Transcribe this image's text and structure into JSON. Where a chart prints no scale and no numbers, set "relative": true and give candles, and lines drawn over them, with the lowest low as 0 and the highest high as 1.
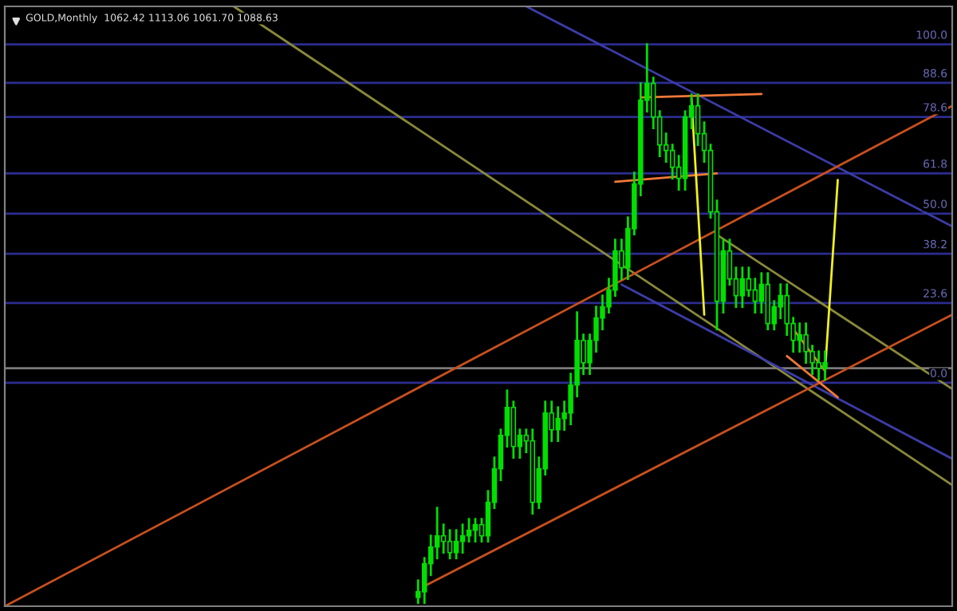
{
  "chart_data": {
    "type": "candlestick",
    "title": "GOLD,Monthly  1062.42 1113.06 1061.70 1088.63",
    "relative": true,
    "color": "#00e000",
    "categories": [
      null,
      null,
      null,
      null,
      null,
      null,
      null,
      null,
      null,
      null,
      null,
      null,
      null,
      null,
      null,
      null,
      null,
      null,
      null,
      null,
      null,
      null,
      null,
      null,
      null,
      null,
      null,
      null,
      null,
      null,
      null,
      null,
      null,
      null,
      null,
      null,
      null,
      null,
      null,
      null,
      null,
      null,
      null,
      null,
      null,
      null,
      null,
      null,
      null,
      null,
      null,
      null,
      null,
      null,
      null,
      null,
      null,
      null,
      null,
      null,
      null,
      null,
      null,
      null,
      null,
      null,
      null,
      null,
      null,
      null,
      null,
      null,
      null,
      null,
      null,
      null,
      null,
      null,
      null,
      null,
      null,
      null,
      null,
      null,
      null,
      null,
      null,
      null,
      null,
      null,
      null,
      null,
      null,
      null,
      null,
      null,
      null,
      null,
      null,
      null,
      null,
      null,
      null,
      null,
      null,
      null,
      null,
      null,
      null,
      null,
      null,
      null,
      null,
      null,
      null,
      null,
      null,
      null,
      null,
      null,
      null,
      null,
      null,
      null,
      null,
      null,
      null,
      null,
      null,
      null,
      null,
      null,
      null,
      null,
      null,
      null,
      null,
      null,
      null,
      null,
      null,
      null,
      null,
      null,
      null,
      null,
      null,
      null,
      null,
      null
    ],
    "ohlc": [
      null,
      null,
      null,
      null,
      null,
      null,
      null,
      null,
      null,
      null,
      null,
      null,
      null,
      null,
      null,
      null,
      null,
      null,
      null,
      null,
      null,
      null,
      null,
      null,
      null,
      null,
      null,
      null,
      null,
      null,
      null,
      null,
      null,
      null,
      null,
      null,
      null,
      null,
      null,
      null,
      null,
      null,
      null,
      null,
      null,
      null,
      null,
      null,
      null,
      null,
      null,
      null,
      null,
      null,
      null,
      null,
      null,
      null,
      null,
      null,
      null,
      null,
      null,
      null,
      null,
      [
        0.01,
        0.04,
        0.0,
        0.02
      ],
      [
        0.02,
        0.08,
        0.0,
        0.07
      ],
      [
        0.07,
        0.12,
        0.05,
        0.1
      ],
      [
        0.1,
        0.17,
        0.08,
        0.12
      ],
      [
        0.12,
        0.14,
        0.09,
        0.11
      ],
      [
        0.11,
        0.13,
        0.08,
        0.09
      ],
      [
        0.09,
        0.13,
        0.08,
        0.11
      ],
      [
        0.11,
        0.14,
        0.09,
        0.12
      ],
      [
        0.12,
        0.15,
        0.11,
        0.13
      ],
      [
        0.13,
        0.15,
        0.11,
        0.14
      ],
      [
        0.14,
        0.15,
        0.11,
        0.12
      ],
      [
        0.12,
        0.2,
        0.11,
        0.18
      ],
      [
        0.18,
        0.26,
        0.17,
        0.24
      ],
      [
        0.24,
        0.31,
        0.22,
        0.3
      ],
      [
        0.3,
        0.38,
        0.28,
        0.35
      ],
      [
        0.35,
        0.36,
        0.26,
        0.28
      ],
      [
        0.28,
        0.31,
        0.26,
        0.3
      ],
      [
        0.3,
        0.31,
        0.27,
        0.29
      ],
      [
        0.29,
        0.31,
        0.16,
        0.18
      ],
      [
        0.18,
        0.26,
        0.17,
        0.24
      ],
      [
        0.24,
        0.36,
        0.23,
        0.34
      ],
      [
        0.34,
        0.36,
        0.29,
        0.31
      ],
      [
        0.31,
        0.35,
        0.29,
        0.33
      ],
      [
        0.33,
        0.36,
        0.31,
        0.34
      ],
      [
        0.34,
        0.41,
        0.32,
        0.39
      ],
      [
        0.39,
        0.52,
        0.37,
        0.47
      ],
      [
        0.47,
        0.48,
        0.41,
        0.43
      ],
      [
        0.43,
        0.48,
        0.41,
        0.47
      ],
      [
        0.47,
        0.53,
        0.45,
        0.51
      ],
      [
        0.51,
        0.55,
        0.49,
        0.53
      ],
      [
        0.53,
        0.58,
        0.52,
        0.56
      ],
      [
        0.56,
        0.65,
        0.55,
        0.63
      ],
      [
        0.63,
        0.65,
        0.58,
        0.6
      ],
      [
        0.6,
        0.69,
        0.58,
        0.67
      ],
      [
        0.67,
        0.77,
        0.66,
        0.75
      ],
      [
        0.75,
        0.93,
        0.73,
        0.9
      ],
      [
        0.9,
        1.0,
        0.88,
        0.93
      ],
      [
        0.93,
        0.94,
        0.85,
        0.87
      ],
      [
        0.87,
        0.88,
        0.8,
        0.82
      ],
      [
        0.82,
        0.84,
        0.79,
        0.81
      ],
      [
        0.81,
        0.82,
        0.76,
        0.78
      ],
      [
        0.78,
        0.8,
        0.74,
        0.76
      ],
      [
        0.76,
        0.88,
        0.74,
        0.87
      ],
      [
        0.87,
        0.91,
        0.85,
        0.89
      ],
      [
        0.89,
        0.91,
        0.82,
        0.84
      ],
      [
        0.84,
        0.86,
        0.79,
        0.81
      ],
      [
        0.81,
        0.82,
        0.69,
        0.7
      ],
      [
        0.7,
        0.72,
        0.49,
        0.54
      ],
      [
        0.54,
        0.65,
        0.52,
        0.63
      ],
      [
        0.63,
        0.65,
        0.57,
        0.58
      ],
      [
        0.58,
        0.6,
        0.53,
        0.55
      ],
      [
        0.55,
        0.6,
        0.53,
        0.58
      ],
      [
        0.58,
        0.6,
        0.55,
        0.56
      ],
      [
        0.56,
        0.58,
        0.52,
        0.54
      ],
      [
        0.54,
        0.59,
        0.52,
        0.57
      ],
      [
        0.57,
        0.59,
        0.49,
        0.5
      ],
      [
        0.5,
        0.54,
        0.49,
        0.53
      ],
      [
        0.53,
        0.57,
        0.51,
        0.55
      ],
      [
        0.55,
        0.57,
        0.48,
        0.5
      ],
      [
        0.5,
        0.51,
        0.45,
        0.47
      ],
      [
        0.47,
        0.5,
        0.45,
        0.48
      ],
      [
        0.48,
        0.5,
        0.43,
        0.45
      ],
      [
        0.45,
        0.46,
        0.41,
        0.43
      ],
      [
        0.43,
        0.45,
        0.4,
        0.42
      ],
      [
        0.42,
        0.45,
        0.4,
        0.43
      ],
      null,
      null,
      null,
      null,
      null,
      null,
      null,
      null,
      null,
      null,
      null,
      null,
      null,
      null,
      null,
      null,
      null,
      null,
      null,
      null
    ],
    "series": [
      {
        "type": "line",
        "color": "#8a8a3a",
        "values": [
          null,
          null,
          null,
          null,
          null,
          null,
          null,
          null,
          null,
          null,
          null,
          null,
          null,
          null,
          null,
          null,
          null,
          null,
          null,
          null,
          null,
          null,
          null,
          null,
          null,
          null,
          null,
          null,
          null,
          null,
          null,
          null,
          null,
          null,
          null,
          null,
          1.068,
          null,
          null,
          null,
          null,
          null,
          null,
          null,
          null,
          null,
          null,
          null,
          null,
          null,
          null,
          null,
          null,
          null,
          null,
          null,
          null,
          null,
          null,
          null,
          null,
          null,
          null,
          null,
          null,
          null,
          null,
          null,
          null,
          null,
          null,
          null,
          null,
          null,
          null,
          null,
          null,
          null,
          null,
          null,
          null,
          null,
          null,
          null,
          null,
          null,
          null,
          null,
          null,
          null,
          null,
          null,
          null,
          null,
          null,
          null,
          null,
          null,
          null,
          null,
          null,
          null,
          null,
          null,
          null,
          null,
          null,
          null,
          null,
          null,
          null,
          null,
          null,
          null,
          null,
          null,
          null,
          null,
          null,
          null,
          null,
          null,
          null,
          null,
          null,
          null,
          null,
          null,
          null,
          null,
          null,
          null,
          null,
          null,
          null,
          null,
          null,
          null,
          null,
          null,
          null,
          null,
          null,
          null,
          null,
          null,
          null,
          null,
          null,
          0.211
        ]
      },
      {
        "type": "line",
        "color": "#8a8a3a",
        "values": [
          null,
          null,
          null,
          null,
          null,
          null,
          null,
          null,
          null,
          null,
          null,
          null,
          null,
          null,
          null,
          null,
          null,
          null,
          null,
          null,
          null,
          null,
          null,
          null,
          null,
          null,
          null,
          null,
          null,
          null,
          null,
          null,
          null,
          null,
          null,
          null,
          null,
          null,
          null,
          null,
          null,
          null,
          null,
          null,
          null,
          null,
          null,
          null,
          null,
          null,
          null,
          null,
          null,
          null,
          null,
          null,
          null,
          null,
          null,
          null,
          null,
          null,
          null,
          null,
          null,
          null,
          null,
          null,
          null,
          null,
          null,
          null,
          null,
          null,
          null,
          null,
          null,
          null,
          null,
          null,
          null,
          null,
          null,
          null,
          null,
          null,
          null,
          null,
          null,
          null,
          null,
          null,
          null,
          null,
          null,
          null,
          null,
          null,
          null,
          null,
          null,
          null,
          null,
          null,
          null,
          null,
          null,
          null,
          null,
          null,
          null,
          null,
          0.659,
          null,
          null,
          null,
          null,
          null,
          null,
          null,
          null,
          null,
          null,
          null,
          null,
          null,
          null,
          null,
          null,
          null,
          null,
          null,
          null,
          null,
          null,
          null,
          null,
          null,
          null,
          null,
          null,
          null,
          null,
          null,
          null,
          null,
          null,
          null,
          null,
          0.383
        ]
      },
      {
        "type": "line",
        "color": "#3c3ca8",
        "values": [
          null,
          null,
          null,
          null,
          null,
          null,
          null,
          null,
          null,
          null,
          null,
          null,
          null,
          null,
          null,
          null,
          null,
          null,
          null,
          null,
          null,
          null,
          null,
          null,
          null,
          null,
          null,
          null,
          null,
          null,
          null,
          null,
          null,
          null,
          null,
          null,
          null,
          null,
          null,
          null,
          null,
          null,
          null,
          null,
          null,
          null,
          null,
          null,
          null,
          null,
          null,
          null,
          null,
          null,
          null,
          null,
          null,
          null,
          null,
          null,
          null,
          null,
          null,
          null,
          null,
          null,
          null,
          null,
          null,
          null,
          null,
          null,
          null,
          null,
          null,
          null,
          null,
          null,
          null,
          null,
          null,
          null,
          1.068,
          null,
          null,
          null,
          null,
          null,
          null,
          null,
          null,
          null,
          null,
          null,
          null,
          null,
          null,
          null,
          null,
          null,
          null,
          null,
          null,
          null,
          null,
          null,
          null,
          null,
          null,
          null,
          null,
          null,
          null,
          null,
          null,
          null,
          null,
          null,
          null,
          null,
          null,
          null,
          null,
          null,
          null,
          null,
          null,
          null,
          null,
          null,
          null,
          null,
          null,
          null,
          null,
          null,
          null,
          null,
          null,
          null,
          null,
          null,
          null,
          null,
          null,
          null,
          null,
          null,
          null,
          0.674
        ]
      },
      {
        "type": "line",
        "color": "#3c3ca8",
        "values": [
          null,
          null,
          null,
          null,
          null,
          null,
          null,
          null,
          null,
          null,
          null,
          null,
          null,
          null,
          null,
          null,
          null,
          null,
          null,
          null,
          null,
          null,
          null,
          null,
          null,
          null,
          null,
          null,
          null,
          null,
          null,
          null,
          null,
          null,
          null,
          null,
          null,
          null,
          null,
          null,
          null,
          null,
          null,
          null,
          null,
          null,
          null,
          null,
          null,
          null,
          null,
          null,
          null,
          null,
          null,
          null,
          null,
          null,
          null,
          null,
          null,
          null,
          null,
          null,
          null,
          null,
          null,
          null,
          null,
          null,
          null,
          null,
          null,
          null,
          null,
          null,
          null,
          null,
          null,
          null,
          null,
          null,
          null,
          null,
          null,
          null,
          null,
          null,
          null,
          null,
          null,
          null,
          null,
          null,
          null,
          null,
          null,
          0.57,
          null,
          null,
          null,
          null,
          null,
          null,
          null,
          null,
          null,
          null,
          null,
          null,
          null,
          null,
          null,
          null,
          null,
          null,
          null,
          null,
          null,
          null,
          null,
          null,
          null,
          null,
          null,
          null,
          null,
          null,
          null,
          null,
          null,
          null,
          null,
          null,
          null,
          null,
          null,
          null,
          null,
          null,
          null,
          null,
          null,
          null,
          null,
          null,
          null,
          null,
          null,
          0.258
        ]
      },
      {
        "type": "line",
        "color": "#c8501e",
        "values": [
          -0.006,
          null,
          null,
          null,
          null,
          null,
          null,
          null,
          null,
          null,
          null,
          null,
          null,
          null,
          null,
          null,
          null,
          null,
          null,
          null,
          null,
          null,
          null,
          null,
          null,
          null,
          null,
          null,
          null,
          null,
          null,
          null,
          null,
          null,
          null,
          null,
          null,
          null,
          null,
          null,
          null,
          null,
          null,
          null,
          null,
          null,
          null,
          null,
          null,
          null,
          null,
          null,
          null,
          null,
          null,
          null,
          null,
          null,
          null,
          null,
          null,
          null,
          null,
          null,
          null,
          null,
          null,
          null,
          null,
          null,
          null,
          null,
          null,
          null,
          null,
          null,
          null,
          null,
          null,
          null,
          null,
          null,
          null,
          null,
          null,
          null,
          null,
          null,
          null,
          null,
          null,
          null,
          null,
          null,
          null,
          null,
          null,
          null,
          null,
          null,
          null,
          null,
          null,
          null,
          null,
          null,
          null,
          null,
          null,
          null,
          null,
          null,
          null,
          null,
          null,
          null,
          null,
          null,
          null,
          null,
          null,
          null,
          null,
          null,
          null,
          null,
          null,
          null,
          null,
          null,
          null,
          null,
          null,
          null,
          null,
          null,
          null,
          null,
          null,
          null,
          null,
          null,
          null,
          null,
          null,
          null,
          null,
          null,
          null,
          0.89
        ]
      },
      {
        "type": "line",
        "color": "#c8501e",
        "values": [
          null,
          null,
          null,
          null,
          null,
          null,
          null,
          null,
          null,
          null,
          null,
          null,
          null,
          null,
          null,
          null,
          null,
          null,
          null,
          null,
          null,
          null,
          null,
          null,
          null,
          null,
          null,
          null,
          null,
          null,
          null,
          null,
          null,
          null,
          null,
          null,
          null,
          null,
          null,
          null,
          null,
          null,
          null,
          null,
          null,
          null,
          null,
          null,
          null,
          null,
          null,
          null,
          null,
          null,
          null,
          null,
          null,
          null,
          null,
          null,
          null,
          null,
          null,
          null,
          null,
          null,
          0.03,
          null,
          null,
          null,
          null,
          null,
          null,
          null,
          null,
          null,
          null,
          null,
          null,
          null,
          null,
          null,
          null,
          null,
          null,
          null,
          null,
          null,
          null,
          null,
          null,
          null,
          null,
          null,
          null,
          null,
          null,
          null,
          null,
          null,
          null,
          null,
          null,
          null,
          null,
          null,
          null,
          null,
          null,
          null,
          null,
          null,
          null,
          null,
          null,
          null,
          null,
          null,
          null,
          null,
          null,
          null,
          null,
          null,
          null,
          null,
          null,
          null,
          null,
          null,
          null,
          null,
          null,
          null,
          null,
          null,
          null,
          null,
          null,
          null,
          null,
          null,
          null,
          null,
          null,
          null,
          null,
          null,
          null,
          0.516
        ]
      },
      {
        "type": "line",
        "color": "#f07838",
        "values": [
          null,
          null,
          null,
          null,
          null,
          null,
          null,
          null,
          null,
          null,
          null,
          null,
          null,
          null,
          null,
          null,
          null,
          null,
          null,
          null,
          null,
          null,
          null,
          null,
          null,
          null,
          null,
          null,
          null,
          null,
          null,
          null,
          null,
          null,
          null,
          null,
          null,
          null,
          null,
          null,
          null,
          null,
          null,
          null,
          null,
          null,
          null,
          null,
          null,
          null,
          null,
          null,
          null,
          null,
          null,
          null,
          null,
          null,
          null,
          null,
          null,
          null,
          null,
          null,
          null,
          null,
          null,
          null,
          null,
          null,
          null,
          null,
          null,
          null,
          null,
          null,
          null,
          null,
          null,
          null,
          null,
          null,
          null,
          null,
          null,
          null,
          null,
          null,
          null,
          null,
          null,
          null,
          null,
          null,
          null,
          null,
          null,
          null,
          null,
          null,
          0.905,
          null,
          null,
          null,
          null,
          null,
          null,
          null,
          null,
          null,
          null,
          null,
          null,
          null,
          null,
          null,
          null,
          null,
          null,
          0.911,
          null,
          null,
          null,
          null,
          null,
          null,
          null,
          null,
          null,
          null,
          null,
          null,
          null,
          null,
          null,
          null,
          null,
          null,
          null,
          null,
          null,
          null,
          null,
          null,
          null,
          null,
          null,
          null,
          null,
          null
        ]
      },
      {
        "type": "line",
        "color": "#f07838",
        "values": [
          null,
          null,
          null,
          null,
          null,
          null,
          null,
          null,
          null,
          null,
          null,
          null,
          null,
          null,
          null,
          null,
          null,
          null,
          null,
          null,
          null,
          null,
          null,
          null,
          null,
          null,
          null,
          null,
          null,
          null,
          null,
          null,
          null,
          null,
          null,
          null,
          null,
          null,
          null,
          null,
          null,
          null,
          null,
          null,
          null,
          null,
          null,
          null,
          null,
          null,
          null,
          null,
          null,
          null,
          null,
          null,
          null,
          null,
          null,
          null,
          null,
          null,
          null,
          null,
          null,
          null,
          null,
          null,
          null,
          null,
          null,
          null,
          null,
          null,
          null,
          null,
          null,
          null,
          null,
          null,
          null,
          null,
          null,
          null,
          null,
          null,
          null,
          null,
          null,
          null,
          null,
          null,
          null,
          null,
          null,
          null,
          0.754,
          null,
          null,
          null,
          null,
          null,
          null,
          null,
          null,
          null,
          null,
          null,
          null,
          null,
          null,
          null,
          0.769,
          null,
          null,
          null,
          null,
          null,
          null,
          null,
          null,
          null,
          null,
          null,
          null,
          null,
          null,
          null,
          null,
          null,
          null,
          null,
          null,
          null,
          null,
          null,
          null,
          null,
          null,
          null,
          null,
          null,
          null,
          null,
          null,
          null,
          null,
          null,
          null,
          null
        ]
      },
      {
        "type": "line",
        "color": "#f0f020",
        "values": [
          null,
          null,
          null,
          null,
          null,
          null,
          null,
          null,
          null,
          null,
          null,
          null,
          null,
          null,
          null,
          null,
          null,
          null,
          null,
          null,
          null,
          null,
          null,
          null,
          null,
          null,
          null,
          null,
          null,
          null,
          null,
          null,
          null,
          null,
          null,
          null,
          null,
          null,
          null,
          null,
          null,
          null,
          null,
          null,
          null,
          null,
          null,
          null,
          null,
          null,
          null,
          null,
          null,
          null,
          null,
          null,
          null,
          null,
          null,
          null,
          null,
          null,
          null,
          null,
          null,
          null,
          null,
          null,
          null,
          null,
          null,
          null,
          null,
          null,
          null,
          null,
          null,
          null,
          null,
          null,
          null,
          null,
          null,
          null,
          null,
          null,
          null,
          null,
          null,
          null,
          null,
          null,
          null,
          null,
          null,
          null,
          null,
          null,
          null,
          null,
          null,
          null,
          null,
          null,
          null,
          null,
          null,
          null,
          0.902,
          null,
          0.516,
          null,
          null,
          null,
          null,
          null,
          null,
          null,
          null,
          null,
          null,
          null,
          null,
          null,
          null,
          null,
          null,
          null,
          null,
          null,
          null,
          null,
          null,
          null,
          null,
          null,
          null,
          null,
          null,
          null,
          null,
          null,
          null,
          null,
          null,
          null,
          null,
          null,
          null,
          null
        ]
      },
      {
        "type": "line",
        "color": "#f0f020",
        "values": [
          null,
          null,
          null,
          null,
          null,
          null,
          null,
          null,
          null,
          null,
          null,
          null,
          null,
          null,
          null,
          null,
          null,
          null,
          null,
          null,
          null,
          null,
          null,
          null,
          null,
          null,
          null,
          null,
          null,
          null,
          null,
          null,
          null,
          null,
          null,
          null,
          null,
          null,
          null,
          null,
          null,
          null,
          null,
          null,
          null,
          null,
          null,
          null,
          null,
          null,
          null,
          null,
          null,
          null,
          null,
          null,
          null,
          null,
          null,
          null,
          null,
          null,
          null,
          null,
          null,
          null,
          null,
          null,
          null,
          null,
          null,
          null,
          null,
          null,
          null,
          null,
          null,
          null,
          null,
          null,
          null,
          null,
          null,
          null,
          null,
          null,
          null,
          null,
          null,
          null,
          null,
          null,
          null,
          null,
          null,
          null,
          null,
          null,
          null,
          null,
          null,
          null,
          null,
          null,
          null,
          null,
          null,
          null,
          null,
          null,
          null,
          null,
          null,
          null,
          null,
          null,
          null,
          null,
          null,
          null,
          null,
          null,
          null,
          null,
          null,
          null,
          null,
          null,
          null,
          0.415,
          null,
          0.757,
          null,
          null,
          null,
          null,
          null,
          null,
          null,
          null,
          null,
          null,
          null,
          null,
          null,
          null,
          null,
          null,
          null,
          null
        ]
      },
      {
        "type": "line",
        "color": "#f07838",
        "values": [
          null,
          null,
          null,
          null,
          null,
          null,
          null,
          null,
          null,
          null,
          null,
          null,
          null,
          null,
          null,
          null,
          null,
          null,
          null,
          null,
          null,
          null,
          null,
          null,
          null,
          null,
          null,
          null,
          null,
          null,
          null,
          null,
          null,
          null,
          null,
          null,
          null,
          null,
          null,
          null,
          null,
          null,
          null,
          null,
          null,
          null,
          null,
          null,
          null,
          null,
          null,
          null,
          null,
          null,
          null,
          null,
          null,
          null,
          null,
          null,
          null,
          null,
          null,
          null,
          null,
          null,
          null,
          null,
          null,
          null,
          null,
          null,
          null,
          null,
          null,
          null,
          null,
          null,
          null,
          null,
          null,
          null,
          null,
          null,
          null,
          null,
          null,
          null,
          null,
          null,
          null,
          null,
          null,
          null,
          null,
          null,
          null,
          null,
          null,
          null,
          null,
          null,
          null,
          null,
          null,
          null,
          null,
          null,
          null,
          null,
          null,
          null,
          null,
          null,
          null,
          null,
          null,
          null,
          null,
          null,
          null,
          null,
          null,
          null,
          0.49,
          null,
          null,
          null,
          null,
          0.415,
          null,
          null,
          null,
          null,
          null,
          null,
          null,
          null,
          null,
          null,
          null,
          null,
          null,
          null,
          null,
          null,
          null,
          null,
          null,
          null
        ]
      },
      {
        "type": "line",
        "color": "#f07838",
        "values": [
          null,
          null,
          null,
          null,
          null,
          null,
          null,
          null,
          null,
          null,
          null,
          null,
          null,
          null,
          null,
          null,
          null,
          null,
          null,
          null,
          null,
          null,
          null,
          null,
          null,
          null,
          null,
          null,
          null,
          null,
          null,
          null,
          null,
          null,
          null,
          null,
          null,
          null,
          null,
          null,
          null,
          null,
          null,
          null,
          null,
          null,
          null,
          null,
          null,
          null,
          null,
          null,
          null,
          null,
          null,
          null,
          null,
          null,
          null,
          null,
          null,
          null,
          null,
          null,
          null,
          null,
          null,
          null,
          null,
          null,
          null,
          null,
          null,
          null,
          null,
          null,
          null,
          null,
          null,
          null,
          null,
          null,
          null,
          null,
          null,
          null,
          null,
          null,
          null,
          null,
          null,
          null,
          null,
          null,
          null,
          null,
          null,
          null,
          null,
          null,
          null,
          null,
          null,
          null,
          null,
          null,
          null,
          null,
          null,
          null,
          null,
          null,
          null,
          null,
          null,
          null,
          null,
          null,
          null,
          null,
          null,
          null,
          null,
          0.442,
          null,
          null,
          null,
          null,
          null,
          null,
          null,
          0.368,
          null,
          null,
          null,
          null,
          null,
          null,
          null,
          null,
          null,
          null,
          null,
          null,
          null,
          null,
          null,
          null,
          null,
          null
        ]
      }
    ],
    "ref_lines": [
      {
        "axis": "y",
        "value": 1.0,
        "color": "#2c2c90"
      },
      {
        "axis": "y",
        "value": 0.931,
        "color": "#2c2c90"
      },
      {
        "axis": "y",
        "value": 0.87,
        "color": "#2c2c90"
      },
      {
        "axis": "y",
        "value": 0.769,
        "color": "#2c2c90"
      },
      {
        "axis": "y",
        "value": 0.697,
        "color": "#2c2c90"
      },
      {
        "axis": "y",
        "value": 0.625,
        "color": "#2c2c90"
      },
      {
        "axis": "y",
        "value": 0.537,
        "color": "#2c2c90"
      },
      {
        "axis": "y",
        "value": 0.394,
        "color": "#2c2c90"
      },
      {
        "axis": "y",
        "value": 0.42,
        "color": "#7a7a7a"
      }
    ],
    "annotations": [
      {
        "text": "100.0",
        "y": 1.0
      },
      {
        "text": "88.6",
        "y": 0.931
      },
      {
        "text": "78.6",
        "y": 0.87
      },
      {
        "text": "61.8",
        "y": 0.769
      },
      {
        "text": "50.0",
        "y": 0.697
      },
      {
        "text": "38.2",
        "y": 0.625
      },
      {
        "text": "23.6",
        "y": 0.537
      },
      {
        "text": "0.0",
        "y": 0.394
      }
    ]
  }
}
